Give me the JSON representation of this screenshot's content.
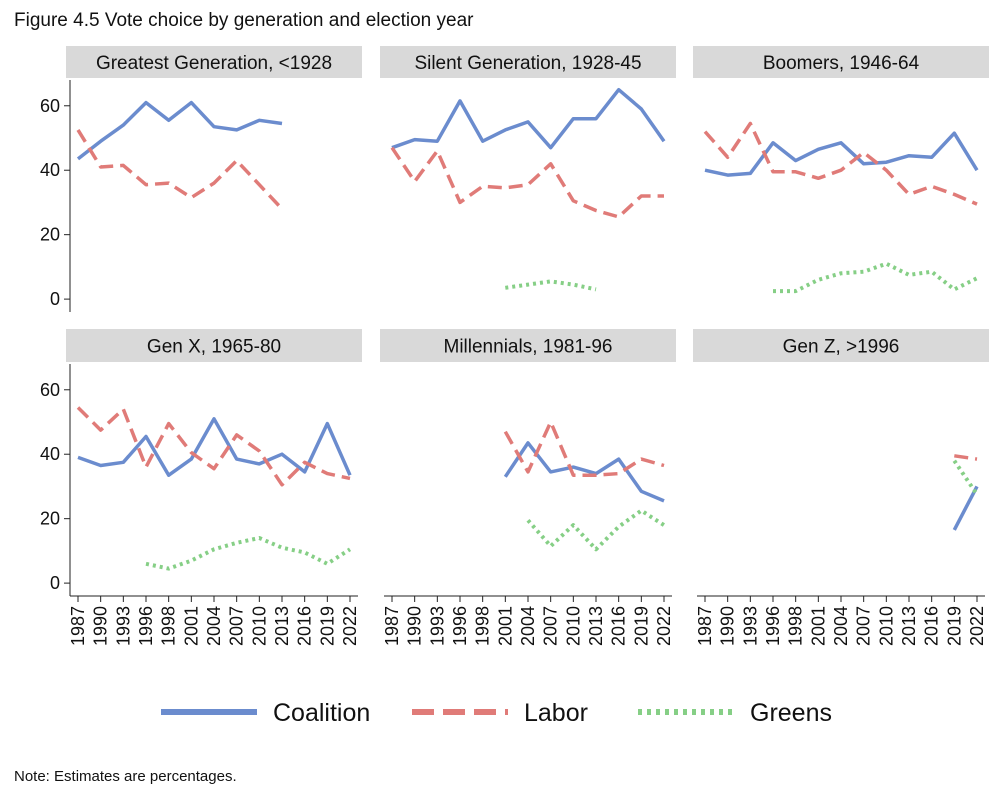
{
  "figure_title": "Figure 4.5 Vote choice by generation and election year",
  "note": "Note: Estimates are percentages.",
  "colors": {
    "Coalition": "#6b8cce",
    "Labor": "#e07b78",
    "Greens": "#86cf86"
  },
  "chart_data": {
    "type": "line",
    "x": [
      "1987",
      "1990",
      "1993",
      "1996",
      "1998",
      "2001",
      "2004",
      "2007",
      "2010",
      "2013",
      "2016",
      "2019",
      "2022"
    ],
    "ylim": [
      -4,
      68
    ],
    "yticks": [
      0,
      20,
      40,
      60
    ],
    "grid": false,
    "legend_position": "bottom",
    "series_styles": {
      "Coalition": "solid",
      "Labor": "dashed",
      "Greens": "dotted"
    },
    "panels": [
      {
        "title": "Greatest Generation, <1928",
        "series": [
          {
            "name": "Coalition",
            "values": [
              43.5,
              49,
              54,
              61,
              55.5,
              61,
              53.5,
              52.5,
              55.5,
              54.5,
              null,
              null,
              null
            ]
          },
          {
            "name": "Labor",
            "values": [
              52.5,
              41,
              41.5,
              35.5,
              36,
              31.5,
              36,
              43,
              35.5,
              28,
              null,
              null,
              null
            ]
          },
          {
            "name": "Greens",
            "values": [
              null,
              null,
              null,
              null,
              null,
              null,
              null,
              null,
              null,
              null,
              null,
              null,
              null
            ]
          }
        ]
      },
      {
        "title": "Silent Generation, 1928-45",
        "series": [
          {
            "name": "Coalition",
            "values": [
              47,
              49.5,
              49,
              61.5,
              49,
              52.5,
              55,
              47,
              56,
              56,
              65,
              59,
              49
            ]
          },
          {
            "name": "Labor",
            "values": [
              47,
              36.5,
              46,
              30,
              35,
              34.5,
              35.5,
              42,
              30.5,
              27.5,
              25.5,
              32,
              32
            ]
          },
          {
            "name": "Greens",
            "values": [
              null,
              null,
              null,
              null,
              null,
              3.5,
              4.5,
              5.5,
              4.5,
              3,
              null,
              null,
              null
            ]
          }
        ]
      },
      {
        "title": "Boomers, 1946-64",
        "series": [
          {
            "name": "Coalition",
            "values": [
              40,
              38.5,
              39,
              48.5,
              43,
              46.5,
              48.5,
              42,
              42.5,
              44.5,
              44,
              51.5,
              40
            ]
          },
          {
            "name": "Labor",
            "values": [
              52,
              44,
              54.5,
              39.5,
              39.5,
              37.5,
              40,
              45.5,
              40,
              32.5,
              35,
              32.5,
              29.5
            ]
          },
          {
            "name": "Greens",
            "values": [
              null,
              null,
              null,
              2.5,
              2.5,
              6,
              8,
              8.5,
              11,
              7.5,
              8.5,
              3,
              6.5
            ]
          }
        ]
      },
      {
        "title": "Gen X, 1965-80",
        "series": [
          {
            "name": "Coalition",
            "values": [
              39,
              36.5,
              37.5,
              45.5,
              33.5,
              38.5,
              51,
              38.5,
              37,
              40,
              34.5,
              49.5,
              33.5
            ]
          },
          {
            "name": "Labor",
            "values": [
              54.5,
              47.5,
              54,
              36,
              49.5,
              40.5,
              35.5,
              46,
              41,
              30.5,
              37.5,
              34,
              32.5
            ]
          },
          {
            "name": "Greens",
            "values": [
              null,
              null,
              null,
              6,
              4.5,
              7,
              10.5,
              12.5,
              14,
              11,
              9.5,
              6,
              10.5
            ]
          }
        ]
      },
      {
        "title": "Millennials, 1981-96",
        "series": [
          {
            "name": "Coalition",
            "values": [
              null,
              null,
              null,
              null,
              null,
              33,
              43.5,
              34.5,
              36,
              34,
              38.5,
              28.5,
              25.5
            ]
          },
          {
            "name": "Labor",
            "values": [
              null,
              null,
              null,
              null,
              null,
              47,
              34.5,
              50,
              33.5,
              33.5,
              34,
              38.5,
              36.5
            ]
          },
          {
            "name": "Greens",
            "values": [
              null,
              null,
              null,
              null,
              null,
              null,
              19.5,
              11.5,
              18,
              10.5,
              17.5,
              22.5,
              18
            ]
          }
        ]
      },
      {
        "title": "Gen Z, >1996",
        "series": [
          {
            "name": "Coalition",
            "values": [
              null,
              null,
              null,
              null,
              null,
              null,
              null,
              null,
              null,
              null,
              null,
              16.5,
              30
            ]
          },
          {
            "name": "Labor",
            "values": [
              null,
              null,
              null,
              null,
              null,
              null,
              null,
              null,
              null,
              null,
              null,
              39.5,
              38.5
            ]
          },
          {
            "name": "Greens",
            "values": [
              null,
              null,
              null,
              null,
              null,
              null,
              null,
              null,
              null,
              null,
              null,
              38,
              27.5
            ]
          }
        ]
      }
    ],
    "legend": [
      "Coalition",
      "Labor",
      "Greens"
    ]
  }
}
